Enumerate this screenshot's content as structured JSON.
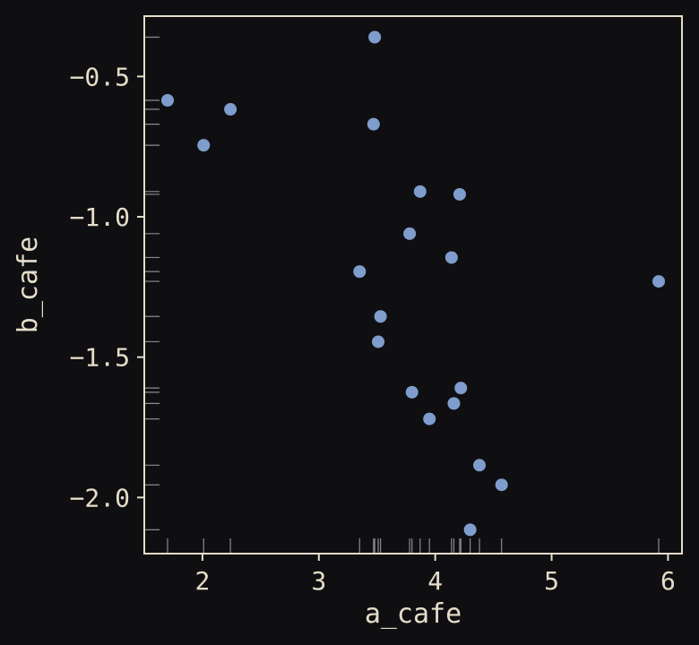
{
  "chart_data": {
    "type": "scatter",
    "title": "",
    "xlabel": "a_cafe",
    "ylabel": "b_cafe",
    "xlim": [
      1.5,
      6.12
    ],
    "ylim": [
      -2.2,
      -0.285
    ],
    "xticks": [
      2,
      3,
      4,
      5,
      6
    ],
    "yticks": [
      -0.5,
      -1.0,
      -1.5,
      -2.0
    ],
    "xtick_labels": [
      "2",
      "3",
      "4",
      "5",
      "6"
    ],
    "ytick_labels": [
      "−0.5",
      "−1.0",
      "−1.5",
      "−2.0"
    ],
    "grid": false,
    "rug_plot": true,
    "colors": {
      "background": "#0f0f12",
      "frame": "#e6ddc9",
      "text": "#e6ddc9",
      "points": "#7f9dcc",
      "rug": "#8a8a92"
    },
    "points": [
      {
        "x": 1.7,
        "y": -0.585
      },
      {
        "x": 2.01,
        "y": -0.745
      },
      {
        "x": 2.24,
        "y": -0.617
      },
      {
        "x": 3.35,
        "y": -1.195
      },
      {
        "x": 3.47,
        "y": -0.67
      },
      {
        "x": 3.48,
        "y": -0.36
      },
      {
        "x": 3.51,
        "y": -1.445
      },
      {
        "x": 3.53,
        "y": -1.355
      },
      {
        "x": 3.78,
        "y": -1.06
      },
      {
        "x": 3.8,
        "y": -1.625
      },
      {
        "x": 3.87,
        "y": -0.91
      },
      {
        "x": 3.95,
        "y": -1.72
      },
      {
        "x": 4.14,
        "y": -1.145
      },
      {
        "x": 4.16,
        "y": -1.665
      },
      {
        "x": 4.21,
        "y": -0.92
      },
      {
        "x": 4.22,
        "y": -1.61
      },
      {
        "x": 4.3,
        "y": -2.115
      },
      {
        "x": 4.38,
        "y": -1.885
      },
      {
        "x": 4.57,
        "y": -1.955
      },
      {
        "x": 5.92,
        "y": -1.23
      }
    ]
  }
}
